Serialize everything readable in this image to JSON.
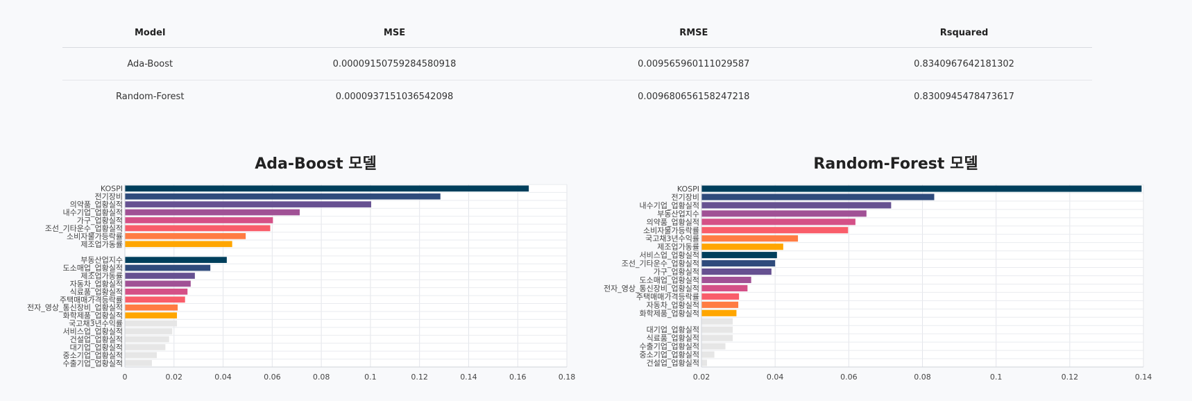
{
  "table": {
    "headers": [
      "Model",
      "MSE",
      "RMSE",
      "Rsquared"
    ],
    "rows": [
      [
        "Ada-Boost",
        "0.0000915075928458091​8",
        "0.00956596011102958​7",
        "0.8340967642181302"
      ],
      [
        "Random-Forest",
        "0.0000937151036542098",
        "0.00968065615824721​8",
        "0.8300945478473617"
      ]
    ]
  },
  "chart_data": [
    {
      "type": "bar",
      "orientation": "horizontal",
      "title": "Ada-Boost 모델",
      "xlim": [
        0,
        0.18
      ],
      "xticks": [
        "0",
        "0.02",
        "0.04",
        "0.06",
        "0.08",
        "0.1",
        "0.12",
        "0.14",
        "0.16",
        "0.18"
      ],
      "categories": [
        "KOSPI",
        "전기장비",
        "의약품_업황실적",
        "내수기업_업황실적",
        "가구_업황실적",
        "조선_기타운수_업황실적",
        "소비자물가등락률",
        "제조업가동률",
        "",
        "부동산업지수",
        "도소매업_업황실적",
        "제조업가동률",
        "자동차_업황실적",
        "식료품_업황실적",
        "주택매매가격등락률",
        "전자_영상_통신장비_업황실적",
        "화학제품_업황실적",
        "국고채3년수익률",
        "서비스업_업황실적",
        "건설업_업황실적",
        "대기업_업황실적",
        "중소기업_업황실적",
        "수출기업_업황실적"
      ],
      "values": [
        0.1645,
        0.1285,
        0.1003,
        0.0712,
        0.0603,
        0.0592,
        0.0492,
        0.0437,
        0.0,
        0.0415,
        0.0348,
        0.0285,
        0.0268,
        0.0255,
        0.0245,
        0.0215,
        0.0212,
        0.0212,
        0.0193,
        0.018,
        0.0165,
        0.013,
        0.011
      ],
      "colors": [
        "#003f5c",
        "#2f4b7c",
        "#665191",
        "#a05195",
        "#d45087",
        "#f95d6a",
        "#ff7c43",
        "#ffa600",
        "#003f5c",
        "#003f5c",
        "#2f4b7c",
        "#665191",
        "#a05195",
        "#d45087",
        "#f95d6a",
        "#ff7c43",
        "#ffa600",
        "#e6e6e6",
        "#e6e6e6",
        "#e6e6e6",
        "#e6e6e6",
        "#e6e6e6",
        "#e6e6e6"
      ]
    },
    {
      "type": "bar",
      "orientation": "horizontal",
      "title": "Random-Forest 모델",
      "xlim": [
        0.02,
        0.14
      ],
      "xticks": [
        "0.02",
        "0.04",
        "0.06",
        "0.08",
        "0.1",
        "0.12",
        "0.14"
      ],
      "categories": [
        "KOSPI",
        "전기장비",
        "내수기업_업황실적",
        "부동산업지수",
        "의약품_업황실적",
        "소비자물가등락률",
        "국고채3년수익률",
        "제조업가동률",
        "서비스업_업황실적",
        "조선_기타운수_업황실적",
        "가구_업황실적",
        "도소매업_업황실적",
        "전자_영상_통신장비_업황실적",
        "주택매매가격등락률",
        "자동차_업황실적",
        "화학제품_업황실적",
        "",
        "대기업_업황실적",
        "식료품_업황실적",
        "수출기업_업황실적",
        "중소기업_업황실적",
        "건설업_업황실적"
      ],
      "values": [
        0.1395,
        0.0832,
        0.0715,
        0.0648,
        0.0618,
        0.0598,
        0.0462,
        0.0422,
        0.0405,
        0.04,
        0.039,
        0.0335,
        0.0325,
        0.0302,
        0.03,
        0.0295,
        0.0285,
        0.0285,
        0.0285,
        0.0265,
        0.0235,
        0.0215
      ],
      "colors": [
        "#003f5c",
        "#2f4b7c",
        "#665191",
        "#a05195",
        "#d45087",
        "#f95d6a",
        "#ff7c43",
        "#ffa600",
        "#003f5c",
        "#2f4b7c",
        "#665191",
        "#a05195",
        "#d45087",
        "#f95d6a",
        "#ff7c43",
        "#ffa600",
        "#e6e6e6",
        "#e6e6e6",
        "#e6e6e6",
        "#e6e6e6",
        "#e6e6e6",
        "#e6e6e6"
      ]
    }
  ]
}
